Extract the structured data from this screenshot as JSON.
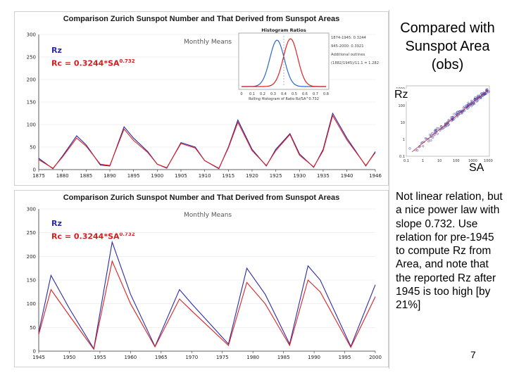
{
  "slide": {
    "title": "Compared with Sunspot Area (obs)",
    "notes": "Not linear relation, but a nice power law with slope 0.732. Use relation for pre-1945 to compute Rz from Area, and note that the reported Rz after 1945 is too high [by 21%]",
    "page_number": "7"
  },
  "scatter": {
    "y_label": "Rz",
    "x_label": "SA",
    "x_ticks": [
      "0.1",
      "1",
      "10",
      "100",
      "1000",
      "10000"
    ],
    "y_ticks": [
      "1000",
      "100",
      "10",
      "1",
      "0.1"
    ]
  },
  "chart_data": [
    {
      "type": "line",
      "title": "Comparison Zurich Sunspot Number and That Derived from Sunspot Areas",
      "subtitle": "Monthly Means",
      "legend": {
        "series_label": "Rz",
        "formula": "Rc = 0.3244*SA",
        "exponent": "0.732"
      },
      "x_ticks": [
        "1875",
        "1880",
        "1885",
        "1890",
        "1895",
        "1900",
        "1905",
        "1910",
        "1915",
        "1920",
        "1925",
        "1930",
        "1935",
        "1940",
        "1946"
      ],
      "y_ticks": [
        "0",
        "50",
        "100",
        "150",
        "200",
        "250",
        "300"
      ],
      "ylim": [
        0,
        300
      ],
      "series": [
        {
          "name": "Rz",
          "color": "#2a2aa8",
          "x": [
            1875,
            1878,
            1880,
            1883,
            1885,
            1888,
            1890,
            1893,
            1895,
            1898,
            1900,
            1902,
            1905,
            1908,
            1910,
            1913,
            1915,
            1917,
            1920,
            1923,
            1925,
            1928,
            1930,
            1933,
            1935,
            1937,
            1940,
            1944,
            1946
          ],
          "values": [
            25,
            2,
            30,
            75,
            55,
            10,
            8,
            95,
            70,
            40,
            12,
            3,
            60,
            50,
            20,
            2,
            50,
            110,
            45,
            8,
            45,
            80,
            35,
            5,
            45,
            125,
            70,
            8,
            40
          ]
        },
        {
          "name": "Rc",
          "color": "#e02020",
          "x": [
            1875,
            1878,
            1880,
            1883,
            1885,
            1888,
            1890,
            1893,
            1895,
            1898,
            1900,
            1902,
            1905,
            1908,
            1910,
            1913,
            1915,
            1917,
            1920,
            1923,
            1925,
            1928,
            1930,
            1933,
            1935,
            1937,
            1940,
            1944,
            1946
          ],
          "values": [
            22,
            3,
            28,
            70,
            52,
            12,
            9,
            90,
            65,
            38,
            12,
            4,
            58,
            48,
            20,
            3,
            48,
            105,
            42,
            9,
            42,
            78,
            32,
            6,
            42,
            120,
            66,
            9,
            38
          ]
        }
      ],
      "inset": {
        "title": "Histogram Ratios",
        "lines": [
          "1874-1945: 0.3244",
          "945-2000: 0.3921",
          "Additional outlines",
          "(1882/1945)/11.1 = 1.282"
        ],
        "xlabel": "Rolling Histogram of Ratio Rz/SA^0.732",
        "x_ticks": [
          "0",
          "0.1",
          "0.2",
          "0.3",
          "0.4",
          "0.5",
          "0.6",
          "0.7",
          "0.8"
        ]
      }
    },
    {
      "type": "line",
      "title": "Comparison Zurich Sunspot Number and That Derived from Sunspot Areas",
      "subtitle": "Monthly Means",
      "legend": {
        "series_label": "Rz",
        "formula": "Rc = 0.3244*SA",
        "exponent": "0.732"
      },
      "x_ticks": [
        "1945",
        "1950",
        "1955",
        "1960",
        "1965",
        "1970",
        "1975",
        "1980",
        "1985",
        "1990",
        "1995",
        "2000"
      ],
      "y_ticks": [
        "0",
        "50",
        "100",
        "150",
        "200",
        "250",
        "300"
      ],
      "ylim": [
        0,
        300
      ],
      "series": [
        {
          "name": "Rz",
          "color": "#2a2aa8",
          "x": [
            1945,
            1947,
            1950,
            1954,
            1957,
            1960,
            1964,
            1968,
            1970,
            1976,
            1979,
            1982,
            1986,
            1989,
            1991,
            1996,
            2000
          ],
          "values": [
            40,
            160,
            90,
            5,
            230,
            120,
            10,
            130,
            100,
            15,
            175,
            120,
            15,
            180,
            150,
            10,
            140
          ]
        },
        {
          "name": "Rc",
          "color": "#e02020",
          "x": [
            1945,
            1947,
            1950,
            1954,
            1957,
            1960,
            1964,
            1968,
            1970,
            1976,
            1979,
            1982,
            1986,
            1989,
            1991,
            1996,
            2000
          ],
          "values": [
            35,
            130,
            75,
            4,
            190,
            100,
            9,
            110,
            85,
            12,
            145,
            100,
            12,
            150,
            125,
            8,
            115
          ]
        }
      ]
    }
  ]
}
